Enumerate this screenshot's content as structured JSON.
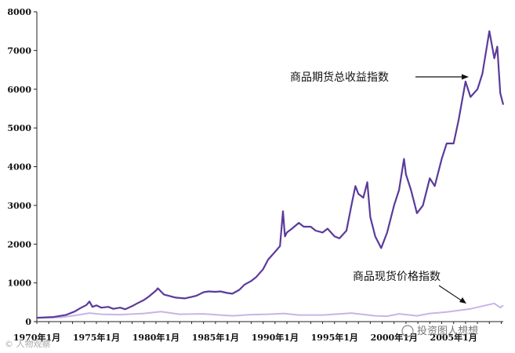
{
  "chart_data": {
    "type": "line",
    "title": "",
    "xlabel": "",
    "ylabel": "",
    "ylim": [
      0,
      8000
    ],
    "xlim": [
      "1970-01",
      "2009-03"
    ],
    "y_ticks": [
      "0",
      "1000",
      "2000",
      "3000",
      "4000",
      "5000",
      "6000",
      "7000",
      "8000"
    ],
    "x_ticks": [
      {
        "label": "1970年1月",
        "date": "1970-01"
      },
      {
        "label": "1975年1月",
        "date": "1975-01"
      },
      {
        "label": "1980年1月",
        "date": "1980-01"
      },
      {
        "label": "1985年1月",
        "date": "1985-01"
      },
      {
        "label": "1990年1月",
        "date": "1990-01"
      },
      {
        "label": "1995年1月",
        "date": "1995-01"
      },
      {
        "label": "2000年1月",
        "date": "2000-01"
      },
      {
        "label": "2005年1月",
        "date": "2005-01"
      }
    ],
    "grid": false,
    "legend": "none",
    "series": [
      {
        "name": "商品期货总收益指数",
        "color": "#5b3a9b",
        "points": [
          [
            "1970-01",
            100
          ],
          [
            "1971-06",
            120
          ],
          [
            "1972-06",
            170
          ],
          [
            "1973-03",
            260
          ],
          [
            "1973-09",
            350
          ],
          [
            "1974-03",
            430
          ],
          [
            "1974-06",
            520
          ],
          [
            "1974-09",
            380
          ],
          [
            "1975-01",
            420
          ],
          [
            "1975-06",
            360
          ],
          [
            "1976-01",
            380
          ],
          [
            "1976-06",
            330
          ],
          [
            "1977-01",
            360
          ],
          [
            "1977-06",
            320
          ],
          [
            "1978-01",
            400
          ],
          [
            "1978-06",
            470
          ],
          [
            "1979-01",
            560
          ],
          [
            "1979-06",
            650
          ],
          [
            "1980-01",
            800
          ],
          [
            "1980-03",
            860
          ],
          [
            "1980-09",
            700
          ],
          [
            "1981-03",
            660
          ],
          [
            "1981-09",
            620
          ],
          [
            "1982-06",
            600
          ],
          [
            "1983-01",
            640
          ],
          [
            "1983-06",
            670
          ],
          [
            "1984-01",
            760
          ],
          [
            "1984-06",
            780
          ],
          [
            "1985-01",
            770
          ],
          [
            "1985-06",
            780
          ],
          [
            "1986-01",
            740
          ],
          [
            "1986-06",
            720
          ],
          [
            "1987-01",
            820
          ],
          [
            "1987-06",
            950
          ],
          [
            "1988-01",
            1050
          ],
          [
            "1988-06",
            1150
          ],
          [
            "1989-01",
            1350
          ],
          [
            "1989-06",
            1600
          ],
          [
            "1990-01",
            1800
          ],
          [
            "1990-06",
            1950
          ],
          [
            "1990-09",
            2850
          ],
          [
            "1990-11",
            2200
          ],
          [
            "1991-01",
            2300
          ],
          [
            "1991-06",
            2400
          ],
          [
            "1992-01",
            2550
          ],
          [
            "1992-06",
            2450
          ],
          [
            "1993-01",
            2450
          ],
          [
            "1993-06",
            2350
          ],
          [
            "1994-01",
            2300
          ],
          [
            "1994-06",
            2400
          ],
          [
            "1995-01",
            2200
          ],
          [
            "1995-06",
            2150
          ],
          [
            "1996-01",
            2350
          ],
          [
            "1996-06",
            3000
          ],
          [
            "1996-10",
            3500
          ],
          [
            "1997-01",
            3300
          ],
          [
            "1997-06",
            3200
          ],
          [
            "1997-10",
            3600
          ],
          [
            "1998-01",
            2700
          ],
          [
            "1998-06",
            2200
          ],
          [
            "1998-12",
            1900
          ],
          [
            "1999-06",
            2300
          ],
          [
            "2000-01",
            3000
          ],
          [
            "2000-06",
            3400
          ],
          [
            "2000-11",
            4200
          ],
          [
            "2001-01",
            3800
          ],
          [
            "2001-06",
            3400
          ],
          [
            "2001-12",
            2800
          ],
          [
            "2002-06",
            3000
          ],
          [
            "2003-01",
            3700
          ],
          [
            "2003-06",
            3500
          ],
          [
            "2004-01",
            4200
          ],
          [
            "2004-06",
            4600
          ],
          [
            "2005-01",
            4600
          ],
          [
            "2005-06",
            5200
          ],
          [
            "2006-01",
            6200
          ],
          [
            "2006-06",
            5800
          ],
          [
            "2007-01",
            6000
          ],
          [
            "2007-06",
            6400
          ],
          [
            "2008-01",
            7500
          ],
          [
            "2008-06",
            6800
          ],
          [
            "2008-09",
            7100
          ],
          [
            "2008-12",
            5900
          ],
          [
            "2009-03",
            5600
          ]
        ]
      },
      {
        "name": "商品现货价格指数",
        "color": "#c9b4e6",
        "points": [
          [
            "1970-01",
            100
          ],
          [
            "1972-01",
            110
          ],
          [
            "1973-06",
            170
          ],
          [
            "1974-06",
            220
          ],
          [
            "1975-06",
            190
          ],
          [
            "1977-01",
            180
          ],
          [
            "1979-01",
            210
          ],
          [
            "1980-06",
            260
          ],
          [
            "1982-01",
            190
          ],
          [
            "1984-01",
            200
          ],
          [
            "1985-06",
            170
          ],
          [
            "1986-06",
            150
          ],
          [
            "1988-01",
            180
          ],
          [
            "1989-06",
            190
          ],
          [
            "1990-10",
            210
          ],
          [
            "1992-01",
            170
          ],
          [
            "1994-01",
            170
          ],
          [
            "1996-06",
            220
          ],
          [
            "1998-06",
            150
          ],
          [
            "1999-06",
            140
          ],
          [
            "2000-06",
            200
          ],
          [
            "2001-12",
            150
          ],
          [
            "2003-01",
            210
          ],
          [
            "2004-06",
            250
          ],
          [
            "2006-06",
            330
          ],
          [
            "2008-06",
            470
          ],
          [
            "2008-12",
            360
          ],
          [
            "2009-03",
            420
          ]
        ]
      }
    ],
    "annotations": [
      {
        "text": "商品期货总收益指数",
        "target_series": "商品期货总收益指数"
      },
      {
        "text": "商品现货价格指数",
        "target_series": "商品现货价格指数"
      }
    ]
  },
  "watermark": "投资图人想想",
  "watermark_left": "© 人物观察"
}
